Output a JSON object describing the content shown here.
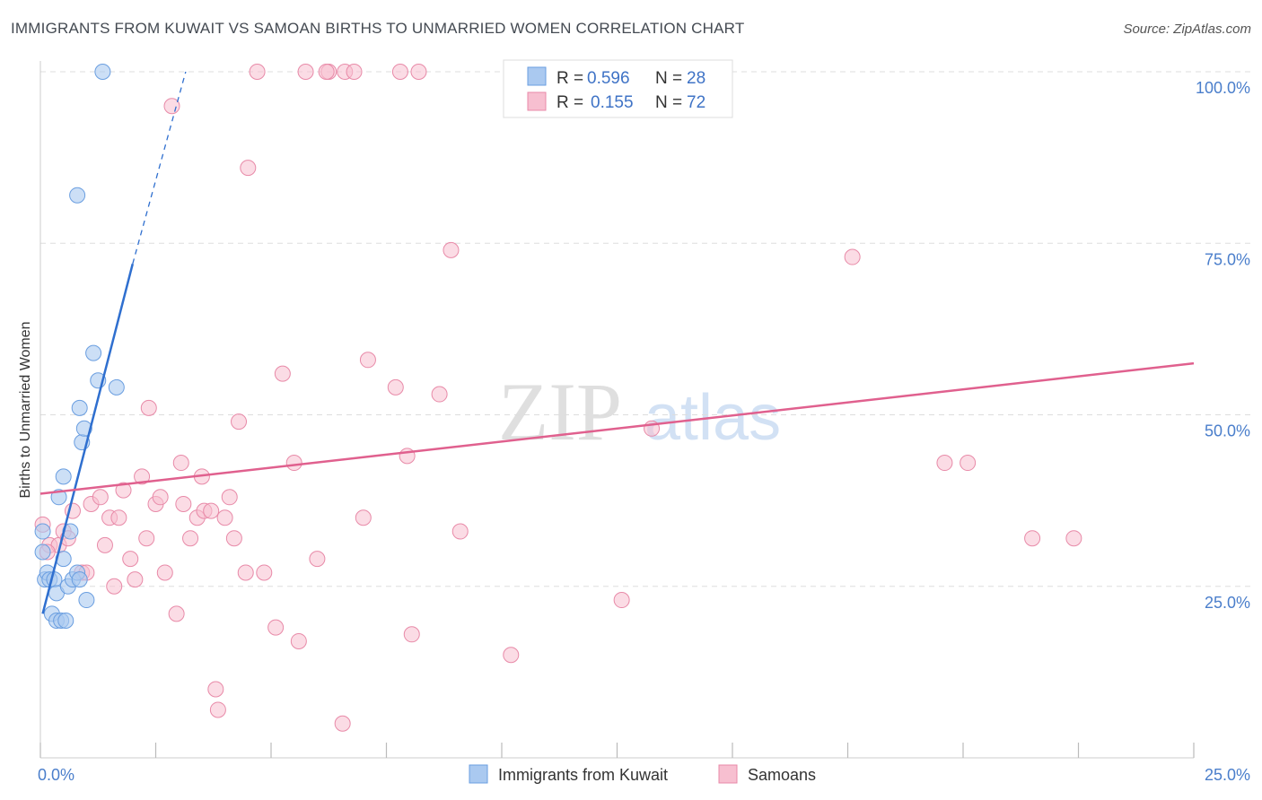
{
  "title": "IMMIGRANTS FROM KUWAIT VS SAMOAN BIRTHS TO UNMARRIED WOMEN CORRELATION CHART",
  "source": "Source: ZipAtlas.com",
  "colors": {
    "blue_fill": "#aac9f0",
    "blue_stroke": "#6a9ee0",
    "blue_line": "#2f6fcf",
    "pink_fill": "#f7bfd0",
    "pink_stroke": "#e88aa8",
    "pink_line": "#e0608e",
    "tick_text": "#4a7ecb",
    "grid": "#dddddd"
  },
  "watermark": {
    "zip": "ZIP",
    "atlas": "atlas"
  },
  "legend": {
    "rows": [
      {
        "r_label": "R =",
        "r_value": "0.596",
        "n_label": "N =",
        "n_value": "28"
      },
      {
        "r_label": "R =",
        "r_value": "0.155",
        "n_label": "N =",
        "n_value": "72"
      }
    ]
  },
  "bottom_legend": [
    "Immigrants from Kuwait",
    "Samoans"
  ],
  "chart_data": {
    "type": "scatter",
    "title": "IMMIGRANTS FROM KUWAIT VS SAMOAN BIRTHS TO UNMARRIED WOMEN CORRELATION CHART",
    "xlabel": "",
    "ylabel": "Births to Unmarried Women",
    "xlim": [
      0,
      25
    ],
    "ylim": [
      0,
      100
    ],
    "x_tick_labels": [
      "0.0%",
      "25.0%"
    ],
    "y_ticks": [
      25,
      50,
      75,
      100
    ],
    "y_tick_labels": [
      "25.0%",
      "50.0%",
      "75.0%",
      "100.0%"
    ],
    "grid": true,
    "series": [
      {
        "name": "Immigrants from Kuwait",
        "color": "blue",
        "points": [
          [
            0.05,
            33
          ],
          [
            0.05,
            30
          ],
          [
            0.1,
            26
          ],
          [
            0.15,
            27
          ],
          [
            0.2,
            26
          ],
          [
            0.25,
            21
          ],
          [
            0.3,
            26
          ],
          [
            0.35,
            24
          ],
          [
            0.35,
            20
          ],
          [
            0.4,
            38
          ],
          [
            0.45,
            20
          ],
          [
            0.5,
            41
          ],
          [
            0.5,
            29
          ],
          [
            0.55,
            20
          ],
          [
            0.6,
            25
          ],
          [
            0.65,
            33
          ],
          [
            0.7,
            26
          ],
          [
            0.8,
            27
          ],
          [
            0.85,
            26
          ],
          [
            0.85,
            51
          ],
          [
            0.9,
            46
          ],
          [
            0.95,
            48
          ],
          [
            1.0,
            23
          ],
          [
            1.15,
            59
          ],
          [
            1.25,
            55
          ],
          [
            1.65,
            54
          ],
          [
            0.8,
            82
          ],
          [
            1.35,
            100
          ]
        ],
        "trend": {
          "x0": 0.05,
          "y0": 21,
          "x1": 2.0,
          "y1": 72,
          "dash_to_x": 3.15,
          "dash_to_y": 100
        }
      },
      {
        "name": "Samoans",
        "color": "pink",
        "points": [
          [
            0.05,
            34
          ],
          [
            0.2,
            31
          ],
          [
            0.4,
            31
          ],
          [
            0.5,
            33
          ],
          [
            0.6,
            32
          ],
          [
            0.7,
            36
          ],
          [
            0.9,
            27
          ],
          [
            1.0,
            27
          ],
          [
            1.1,
            37
          ],
          [
            1.3,
            38
          ],
          [
            1.4,
            31
          ],
          [
            1.5,
            35
          ],
          [
            1.6,
            25
          ],
          [
            1.7,
            35
          ],
          [
            1.8,
            39
          ],
          [
            1.95,
            29
          ],
          [
            2.05,
            26
          ],
          [
            2.2,
            41
          ],
          [
            2.3,
            32
          ],
          [
            2.35,
            51
          ],
          [
            2.5,
            37
          ],
          [
            2.6,
            38
          ],
          [
            2.7,
            27
          ],
          [
            2.85,
            95
          ],
          [
            2.95,
            21
          ],
          [
            3.05,
            43
          ],
          [
            3.1,
            37
          ],
          [
            3.25,
            32
          ],
          [
            3.4,
            35
          ],
          [
            3.5,
            41
          ],
          [
            3.55,
            36
          ],
          [
            3.7,
            36
          ],
          [
            3.8,
            10
          ],
          [
            3.85,
            7
          ],
          [
            4.0,
            35
          ],
          [
            4.1,
            38
          ],
          [
            4.2,
            32
          ],
          [
            4.3,
            49
          ],
          [
            4.45,
            27
          ],
          [
            4.5,
            86
          ],
          [
            4.7,
            100
          ],
          [
            4.85,
            27
          ],
          [
            5.1,
            19
          ],
          [
            5.25,
            56
          ],
          [
            5.5,
            43
          ],
          [
            5.6,
            17
          ],
          [
            5.75,
            100
          ],
          [
            6.0,
            29
          ],
          [
            6.25,
            100
          ],
          [
            6.2,
            100
          ],
          [
            6.55,
            5
          ],
          [
            6.6,
            100
          ],
          [
            6.8,
            100
          ],
          [
            7.0,
            35
          ],
          [
            7.1,
            58
          ],
          [
            7.7,
            54
          ],
          [
            7.8,
            100
          ],
          [
            7.95,
            44
          ],
          [
            8.05,
            18
          ],
          [
            8.2,
            100
          ],
          [
            8.65,
            53
          ],
          [
            8.9,
            74
          ],
          [
            9.1,
            33
          ],
          [
            10.2,
            15
          ],
          [
            12.6,
            23
          ],
          [
            13.25,
            48
          ],
          [
            17.6,
            73
          ],
          [
            19.6,
            43
          ],
          [
            20.1,
            43
          ],
          [
            21.5,
            32
          ],
          [
            22.4,
            32
          ],
          [
            0.15,
            30
          ]
        ],
        "trend": {
          "x0": 0,
          "y0": 38.5,
          "x1": 25,
          "y1": 57.5
        }
      }
    ]
  }
}
